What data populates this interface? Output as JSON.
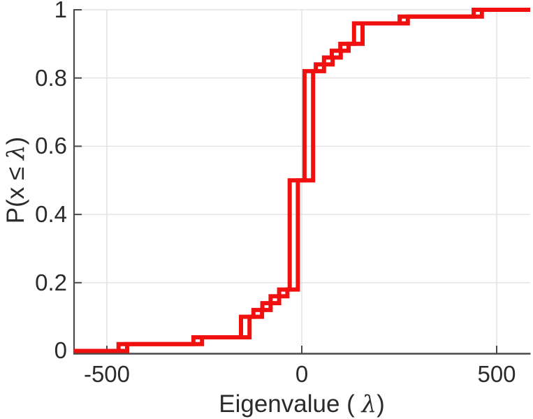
{
  "figure": {
    "background": "#ffffff"
  },
  "chart_data": {
    "type": "step",
    "subtype": "empirical-cdf",
    "title": "",
    "xlabel": "Eigenvalue ( λ)",
    "ylabel": "P(x ≤ λ)",
    "xlabel_parts": {
      "prefix": "Eigenvalue ( ",
      "symbol": "λ",
      "suffix": ")"
    },
    "ylabel_parts": {
      "prefix": "P(x ≤ ",
      "symbol": "λ",
      "suffix": ")"
    },
    "xlim": [
      -586,
      586
    ],
    "ylim": [
      0,
      1
    ],
    "xticks": [
      -500,
      0,
      500
    ],
    "xtick_labels": [
      "-500",
      "0",
      "500"
    ],
    "yticks": [
      0,
      0.2,
      0.4,
      0.6,
      0.8,
      1
    ],
    "ytick_labels": [
      "0",
      "0.2",
      "0.4",
      "0.6",
      "0.8",
      "1"
    ],
    "grid": true,
    "legend": null,
    "line_color": "#f01010",
    "axis_color": "#4a4a4a",
    "grid_color": "#e2e2e2",
    "levels": [
      0.02,
      0.04,
      0.1,
      0.12,
      0.14,
      0.16,
      0.18,
      0.5,
      0.82,
      0.84,
      0.86,
      0.88,
      0.9,
      0.96,
      0.98,
      1.0
    ],
    "series": [
      {
        "name": "ecdf-curve-1",
        "step_x": [
          -470,
          -278,
          -156,
          -124,
          -101,
          -80,
          -58,
          -31,
          7,
          36,
          57,
          77,
          99,
          134,
          251,
          441
        ]
      },
      {
        "name": "ecdf-curve-2",
        "step_x": [
          -448,
          -256,
          -134,
          -102,
          -80,
          -58,
          -37,
          -10,
          29,
          57,
          79,
          100,
          120,
          156,
          272,
          462
        ]
      }
    ]
  }
}
